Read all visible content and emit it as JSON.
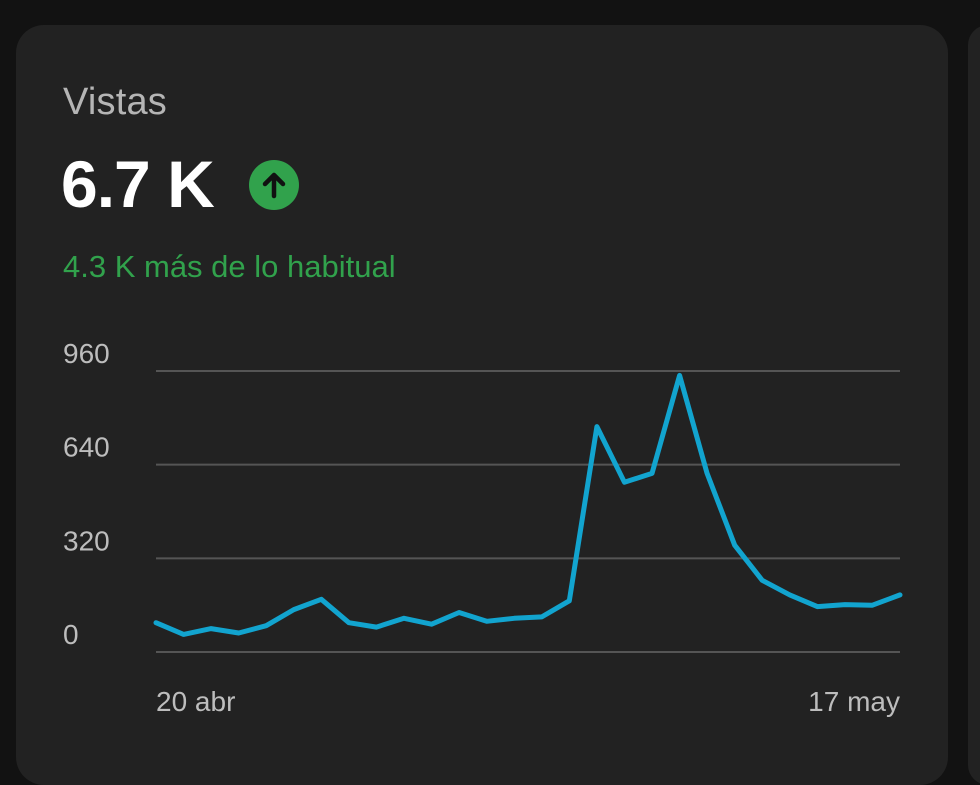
{
  "card": {
    "title": "Vistas",
    "value": "6.7 K",
    "trend_icon": "arrow-up-circle-icon",
    "delta_text": "4.3 K más de lo habitual"
  },
  "colors": {
    "card_bg": "#222222",
    "page_bg": "#121212",
    "line": "#12a4cf",
    "positive": "#31a24c",
    "grid": "#555555"
  },
  "chart_data": {
    "type": "line",
    "x_labels": [
      "20 abr",
      "17 may"
    ],
    "y_ticks": [
      0,
      320,
      640,
      960
    ],
    "ylim": [
      0,
      960
    ],
    "grid": true,
    "series": [
      {
        "values": [
          100,
          60,
          80,
          65,
          90,
          145,
          180,
          100,
          85,
          115,
          95,
          135,
          105,
          115,
          120,
          175,
          770,
          580,
          610,
          945,
          610,
          365,
          245,
          195,
          155,
          162,
          160,
          195
        ]
      }
    ]
  }
}
